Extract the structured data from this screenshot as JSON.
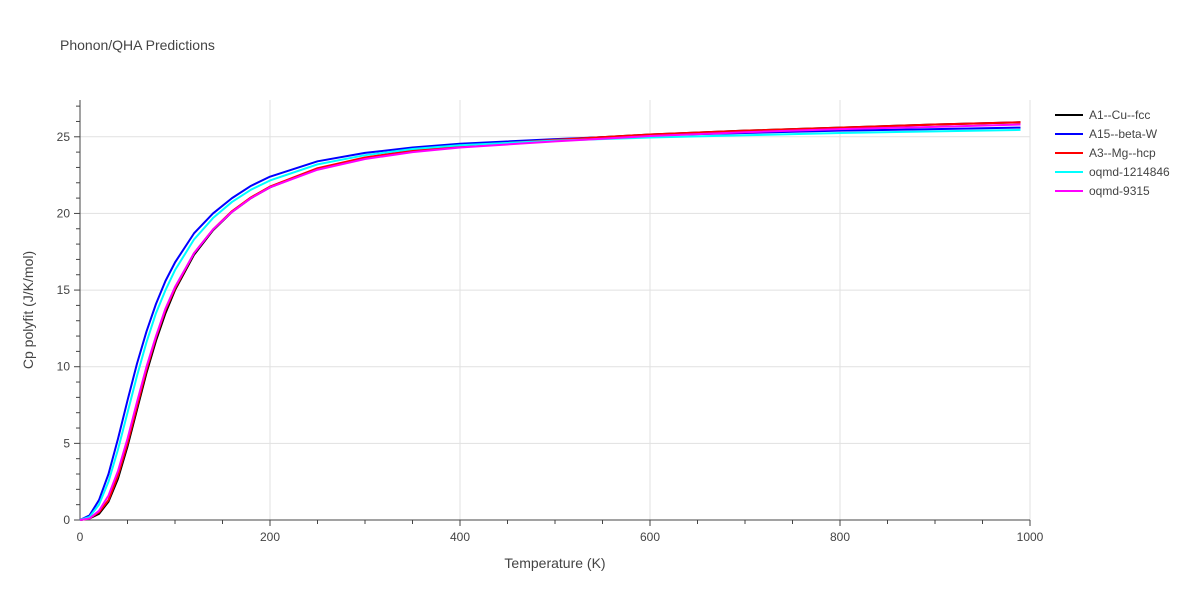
{
  "chart_data": {
    "type": "line",
    "title": "Phonon/QHA Predictions",
    "xlabel": "Temperature (K)",
    "ylabel": "Cp polyfit (J/K/mol)",
    "xlim": [
      0,
      1000
    ],
    "ylim": [
      0,
      27.4
    ],
    "xticks": [
      0,
      200,
      400,
      600,
      800,
      1000
    ],
    "xtick_labels": [
      "0",
      "200",
      "400",
      "600",
      "800",
      "1000"
    ],
    "yticks": [
      0,
      5,
      10,
      15,
      20,
      25
    ],
    "ytick_labels": [
      "0",
      "5",
      "10",
      "15",
      "20",
      "25"
    ],
    "grid": true,
    "legend_position": "right",
    "x": [
      0,
      10,
      20,
      30,
      40,
      50,
      60,
      70,
      80,
      90,
      100,
      120,
      140,
      160,
      180,
      200,
      250,
      300,
      350,
      400,
      500,
      600,
      700,
      800,
      900,
      990
    ],
    "series": [
      {
        "name": "A1--Cu--fcc",
        "color": "#000000",
        "values": [
          0,
          0.1,
          0.4,
          1.2,
          2.7,
          4.8,
          7.2,
          9.6,
          11.7,
          13.5,
          15.0,
          17.3,
          18.9,
          20.1,
          21.0,
          21.7,
          22.9,
          23.6,
          24.05,
          24.4,
          24.8,
          25.15,
          25.4,
          25.6,
          25.8,
          25.95
        ]
      },
      {
        "name": "A15--beta-W",
        "color": "#0000ff",
        "values": [
          0,
          0.3,
          1.3,
          3.0,
          5.3,
          7.8,
          10.2,
          12.3,
          14.1,
          15.6,
          16.8,
          18.7,
          20.0,
          21.0,
          21.8,
          22.4,
          23.4,
          23.95,
          24.3,
          24.55,
          24.85,
          25.1,
          25.25,
          25.4,
          25.5,
          25.6
        ]
      },
      {
        "name": "A3--Mg--hcp",
        "color": "#ff0000",
        "values": [
          0,
          0.1,
          0.5,
          1.3,
          2.9,
          5.0,
          7.4,
          9.8,
          11.9,
          13.7,
          15.1,
          17.4,
          18.95,
          20.15,
          21.05,
          21.75,
          22.95,
          23.65,
          24.1,
          24.4,
          24.8,
          25.15,
          25.4,
          25.6,
          25.8,
          25.95
        ]
      },
      {
        "name": "oqmd-1214846",
        "color": "#00ffff",
        "values": [
          0,
          0.2,
          1.0,
          2.5,
          4.6,
          7.0,
          9.4,
          11.6,
          13.5,
          15.0,
          16.3,
          18.3,
          19.7,
          20.75,
          21.55,
          22.15,
          23.2,
          23.8,
          24.2,
          24.45,
          24.75,
          24.95,
          25.1,
          25.25,
          25.35,
          25.45
        ]
      },
      {
        "name": "oqmd-9315",
        "color": "#ff00ff",
        "values": [
          0,
          0.1,
          0.6,
          1.6,
          3.2,
          5.3,
          7.7,
          10.0,
          12.0,
          13.8,
          15.2,
          17.4,
          18.95,
          20.1,
          21.0,
          21.7,
          22.85,
          23.55,
          24.0,
          24.3,
          24.7,
          25.05,
          25.3,
          25.5,
          25.65,
          25.8
        ]
      }
    ]
  }
}
